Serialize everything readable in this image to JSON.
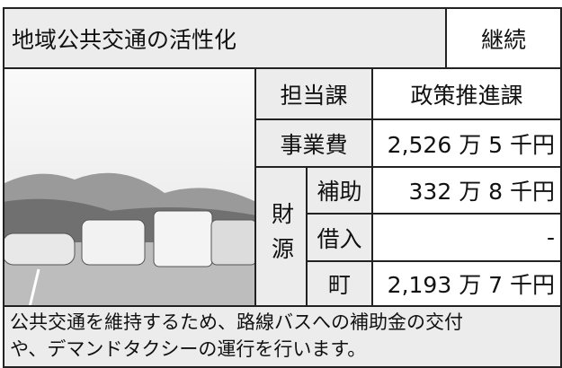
{
  "header": {
    "title": "地域公共交通の活性化",
    "status": "継続"
  },
  "rows": [
    {
      "label": "担当課",
      "value": "政策推進課"
    },
    {
      "label": "事業費",
      "value": "2,526 万 5 千円"
    }
  ],
  "funding": {
    "label": "財源",
    "items": [
      {
        "label": "補助",
        "value": "332 万 8 千円"
      },
      {
        "label": "借入",
        "value": "-"
      },
      {
        "label": "町",
        "value": "2,193 万 7 千円"
      }
    ]
  },
  "description": [
    "公共交通を維持するため、路線バスへの補助金の交付",
    "や、デマンドタクシーの運行を行います。"
  ]
}
